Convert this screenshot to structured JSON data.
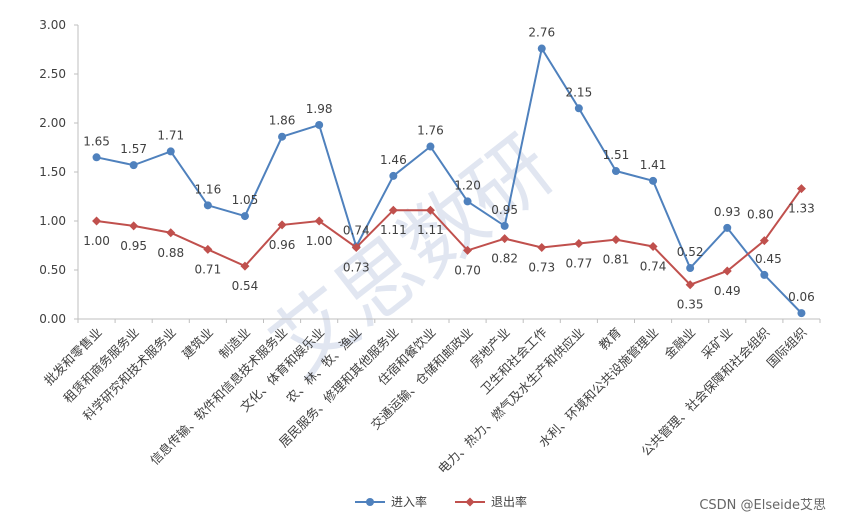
{
  "chart_data": {
    "type": "line",
    "categories": [
      "批发和零售业",
      "租赁和商务服务业",
      "科学研究和技术服务业",
      "建筑业",
      "制造业",
      "信息传输、软件和信息技术服务业",
      "文化、体育和娱乐业",
      "农、林、牧、渔业",
      "居民服务、修理和其他服务业",
      "住宿和餐饮业",
      "交通运输、仓储和邮政业",
      "房地产业",
      "卫生和社会工作",
      "电力、热力、燃气及水生产和供应业",
      "教育",
      "水利、环境和公共设施管理业",
      "金融业",
      "采矿业",
      "公共管理、社会保障和社会组织",
      "国际组织"
    ],
    "series": [
      {
        "name": "进入率",
        "color": "#4f81bd",
        "marker": "circle",
        "values": [
          1.65,
          1.57,
          1.71,
          1.16,
          1.05,
          1.86,
          1.98,
          0.74,
          1.46,
          1.76,
          1.2,
          0.95,
          2.76,
          2.15,
          1.51,
          1.41,
          0.52,
          0.93,
          0.45,
          0.06
        ],
        "labels": [
          "1.65",
          "1.57",
          "1.71",
          "1.16",
          "1.05",
          "1.86",
          "1.98",
          "0.74",
          "1.46",
          "1.76",
          "1.20",
          "0.95",
          "2.76",
          "2.15",
          "1.51",
          "1.41",
          "0.52",
          "0.93",
          "0.45",
          "0.06"
        ]
      },
      {
        "name": "退出率",
        "color": "#c0504d",
        "marker": "diamond",
        "values": [
          1.0,
          0.95,
          0.88,
          0.71,
          0.54,
          0.96,
          1.0,
          0.73,
          1.11,
          1.11,
          0.7,
          0.82,
          0.73,
          0.77,
          0.81,
          0.74,
          0.35,
          0.49,
          0.8,
          1.33
        ],
        "labels": [
          "1.00",
          "0.95",
          "0.88",
          "0.71",
          "0.54",
          "0.96",
          "1.00",
          "0.73",
          "1.11",
          "1.11",
          "0.70",
          "0.82",
          "0.73",
          "0.77",
          "0.81",
          "0.74",
          "0.35",
          "0.49",
          "0.80",
          "1.33"
        ]
      }
    ],
    "ylim": [
      0,
      3
    ],
    "yticks": [
      "0.00",
      "0.50",
      "1.00",
      "1.50",
      "2.00",
      "2.50",
      "3.00"
    ],
    "ytick_values": [
      0,
      0.5,
      1,
      1.5,
      2,
      2.5,
      3
    ],
    "grid": false,
    "legend": "bottom",
    "watermark": "艾思数研"
  },
  "credit": "CSDN @Elseide艾思"
}
